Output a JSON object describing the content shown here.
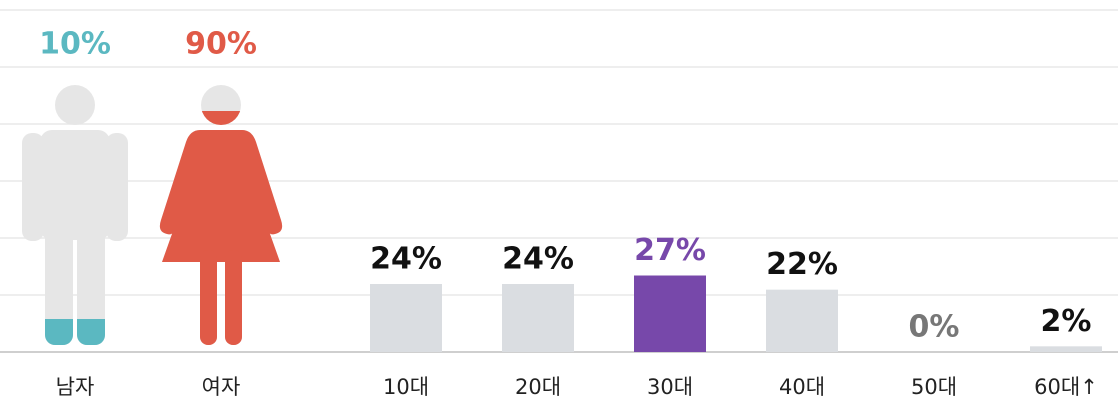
{
  "chart_data": [
    {
      "type": "pictogram",
      "categories": [
        "남자",
        "여자"
      ],
      "values": [
        10,
        90
      ],
      "value_labels": [
        "10%",
        "90%"
      ],
      "colors": [
        "#5bb8c1",
        "#e05a47"
      ]
    },
    {
      "type": "bar",
      "categories": [
        "10대",
        "20대",
        "30대",
        "40대",
        "50대",
        "60대↑"
      ],
      "values": [
        24,
        24,
        27,
        22,
        0,
        2
      ],
      "value_labels": [
        "24%",
        "24%",
        "27%",
        "22%",
        "0%",
        "2%"
      ],
      "colors": [
        "#dadde1",
        "#dadde1",
        "#7748aa",
        "#dadde1",
        "#dadde1",
        "#dadde1"
      ],
      "label_colors": [
        "#111111",
        "#111111",
        "#7748aa",
        "#111111",
        "#777777",
        "#111111"
      ]
    }
  ]
}
